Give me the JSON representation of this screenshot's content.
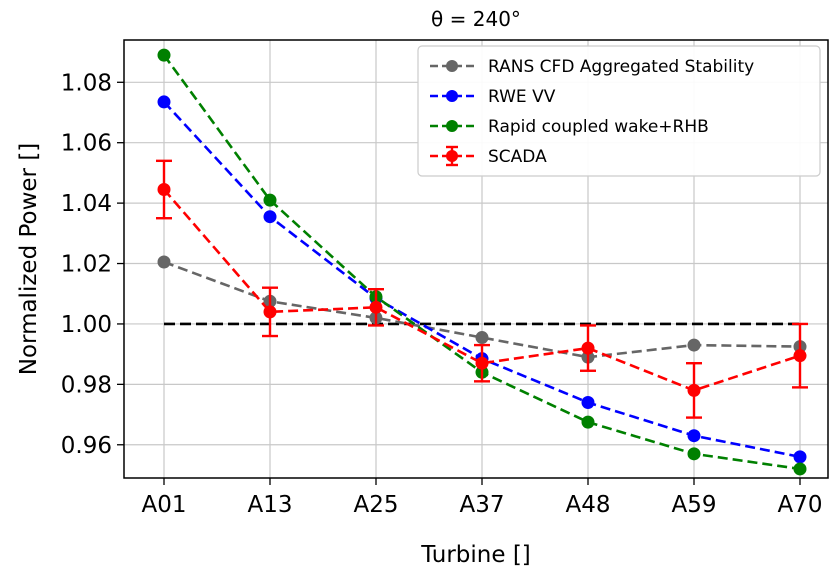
{
  "chart_data": {
    "type": "line",
    "title": "θ = 240°",
    "xlabel": "Turbine []",
    "ylabel": "Normalized Power []",
    "categories": [
      "A01",
      "A13",
      "A25",
      "A37",
      "A48",
      "A59",
      "A70"
    ],
    "ylim": [
      0.949,
      1.094
    ],
    "yticks": [
      0.96,
      0.98,
      1.0,
      1.02,
      1.04,
      1.06,
      1.08
    ],
    "ytick_labels": [
      "0.96",
      "0.98",
      "1.00",
      "1.02",
      "1.04",
      "1.06",
      "1.08"
    ],
    "grid": true,
    "legend_position": "top-right",
    "reference_line": {
      "y": 1.0,
      "style": "dashed",
      "color": "#000000"
    },
    "series": [
      {
        "name": "RANS CFD Aggregated Stability",
        "color": "#666666",
        "style": "dashed",
        "values": [
          1.0205,
          1.0075,
          1.002,
          0.9955,
          0.989,
          0.993,
          0.9925
        ]
      },
      {
        "name": "RWE VV",
        "color": "#0000ff",
        "style": "dashed",
        "values": [
          1.0735,
          1.0355,
          1.0085,
          0.9885,
          0.974,
          0.963,
          0.956
        ]
      },
      {
        "name": "Rapid coupled wake+RHB",
        "color": "#008000",
        "style": "dashed",
        "values": [
          1.089,
          1.041,
          1.009,
          0.984,
          0.9675,
          0.957,
          0.952
        ]
      },
      {
        "name": "SCADA",
        "color": "#ff0000",
        "style": "dashed",
        "error_bars": true,
        "values": [
          1.0445,
          1.004,
          1.0055,
          0.987,
          0.992,
          0.978,
          0.9895
        ],
        "errors": [
          0.0095,
          0.008,
          0.006,
          0.006,
          0.0075,
          0.009,
          0.0105
        ]
      }
    ]
  }
}
